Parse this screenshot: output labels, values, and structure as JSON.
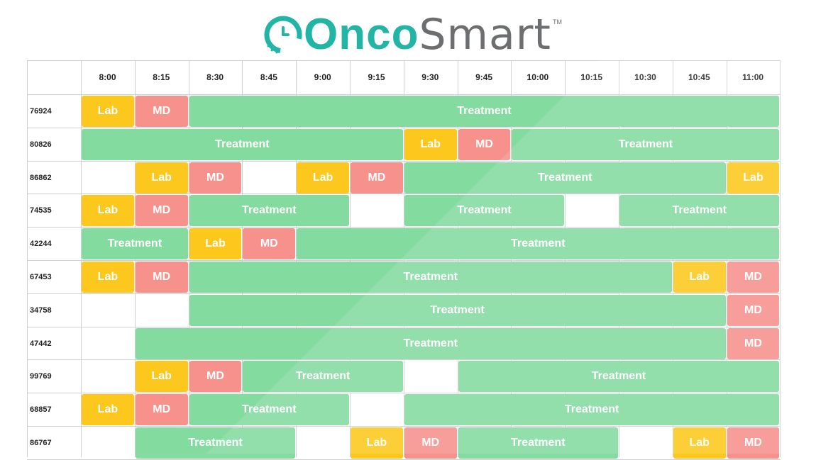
{
  "logo": {
    "onco": "Onco",
    "smart": "Smart",
    "tm": "TM"
  },
  "colors": {
    "lab": "#fcc81e",
    "md": "#f7918c",
    "treatment": "#83dba0",
    "brand": "#22b5a6"
  },
  "times": [
    "8:00",
    "8:15",
    "8:30",
    "8:45",
    "9:00",
    "9:15",
    "9:30",
    "9:45",
    "10:00",
    "10:15",
    "10:30",
    "10:45",
    "11:00"
  ],
  "patients": [
    {
      "id": "76924",
      "blocks": [
        {
          "type": "lab",
          "label": "Lab",
          "start": 0,
          "span": 1
        },
        {
          "type": "md",
          "label": "MD",
          "start": 1,
          "span": 1
        },
        {
          "type": "treatment",
          "label": "Treatment",
          "start": 2,
          "span": 11
        }
      ]
    },
    {
      "id": "80826",
      "blocks": [
        {
          "type": "treatment",
          "label": "Treatment",
          "start": 0,
          "span": 6
        },
        {
          "type": "lab",
          "label": "Lab",
          "start": 6,
          "span": 1
        },
        {
          "type": "md",
          "label": "MD",
          "start": 7,
          "span": 1
        },
        {
          "type": "treatment",
          "label": "Treatment",
          "start": 8,
          "span": 5
        }
      ]
    },
    {
      "id": "86862",
      "blocks": [
        {
          "type": "lab",
          "label": "Lab",
          "start": 1,
          "span": 1
        },
        {
          "type": "md",
          "label": "MD",
          "start": 2,
          "span": 1
        },
        {
          "type": "lab",
          "label": "Lab",
          "start": 4,
          "span": 1
        },
        {
          "type": "md",
          "label": "MD",
          "start": 5,
          "span": 1
        },
        {
          "type": "treatment",
          "label": "Treatment",
          "start": 6,
          "span": 6
        },
        {
          "type": "lab",
          "label": "Lab",
          "start": 12,
          "span": 1
        }
      ]
    },
    {
      "id": "74535",
      "blocks": [
        {
          "type": "lab",
          "label": "Lab",
          "start": 0,
          "span": 1
        },
        {
          "type": "md",
          "label": "MD",
          "start": 1,
          "span": 1
        },
        {
          "type": "treatment",
          "label": "Treatment",
          "start": 2,
          "span": 3
        },
        {
          "type": "treatment",
          "label": "Treatment",
          "start": 6,
          "span": 3
        },
        {
          "type": "treatment",
          "label": "Treatment",
          "start": 10,
          "span": 3
        }
      ]
    },
    {
      "id": "42244",
      "blocks": [
        {
          "type": "treatment",
          "label": "Treatment",
          "start": 0,
          "span": 2
        },
        {
          "type": "lab",
          "label": "Lab",
          "start": 2,
          "span": 1
        },
        {
          "type": "md",
          "label": "MD",
          "start": 3,
          "span": 1
        },
        {
          "type": "treatment",
          "label": "Treatment",
          "start": 4,
          "span": 9
        }
      ]
    },
    {
      "id": "67453",
      "blocks": [
        {
          "type": "lab",
          "label": "Lab",
          "start": 0,
          "span": 1
        },
        {
          "type": "md",
          "label": "MD",
          "start": 1,
          "span": 1
        },
        {
          "type": "treatment",
          "label": "Treatment",
          "start": 2,
          "span": 9
        },
        {
          "type": "lab",
          "label": "Lab",
          "start": 11,
          "span": 1
        },
        {
          "type": "md",
          "label": "MD",
          "start": 12,
          "span": 1
        }
      ]
    },
    {
      "id": "34758",
      "blocks": [
        {
          "type": "treatment",
          "label": "Treatment",
          "start": 2,
          "span": 10
        },
        {
          "type": "md",
          "label": "MD",
          "start": 12,
          "span": 1
        }
      ]
    },
    {
      "id": "47442",
      "blocks": [
        {
          "type": "treatment",
          "label": "Treatment",
          "start": 1,
          "span": 11
        },
        {
          "type": "md",
          "label": "MD",
          "start": 12,
          "span": 1
        }
      ]
    },
    {
      "id": "99769",
      "blocks": [
        {
          "type": "lab",
          "label": "Lab",
          "start": 1,
          "span": 1
        },
        {
          "type": "md",
          "label": "MD",
          "start": 2,
          "span": 1
        },
        {
          "type": "treatment",
          "label": "Treatment",
          "start": 3,
          "span": 3
        },
        {
          "type": "treatment",
          "label": "Treatment",
          "start": 7,
          "span": 6
        }
      ]
    },
    {
      "id": "68857",
      "blocks": [
        {
          "type": "lab",
          "label": "Lab",
          "start": 0,
          "span": 1
        },
        {
          "type": "md",
          "label": "MD",
          "start": 1,
          "span": 1
        },
        {
          "type": "treatment",
          "label": "Treatment",
          "start": 2,
          "span": 3
        },
        {
          "type": "treatment",
          "label": "Treatment",
          "start": 6,
          "span": 7
        }
      ]
    },
    {
      "id": "86767",
      "blocks": [
        {
          "type": "treatment",
          "label": "Treatment",
          "start": 1,
          "span": 3
        },
        {
          "type": "lab",
          "label": "Lab",
          "start": 5,
          "span": 1
        },
        {
          "type": "md",
          "label": "MD",
          "start": 6,
          "span": 1
        },
        {
          "type": "treatment",
          "label": "Treatment",
          "start": 7,
          "span": 3
        },
        {
          "type": "lab",
          "label": "Lab",
          "start": 11,
          "span": 1
        },
        {
          "type": "md",
          "label": "MD",
          "start": 12,
          "span": 1
        }
      ]
    }
  ]
}
